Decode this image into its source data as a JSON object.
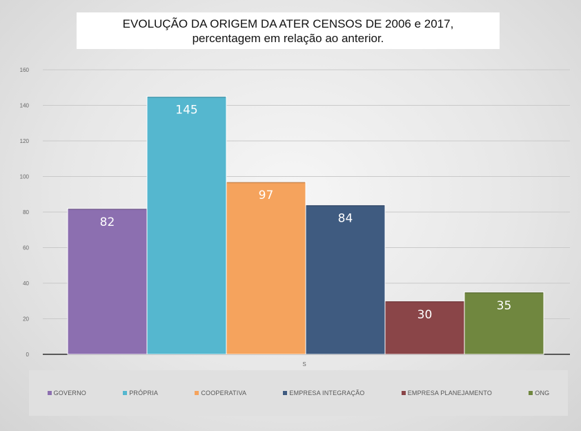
{
  "chart_data": {
    "type": "bar",
    "title_line1": "EVOLUÇÃO DA ORIGEM DA ATER CENSOS DE 2006 e 2017,",
    "title_line2": "percentagem em relação ao anterior.",
    "categories": [
      "S"
    ],
    "xlabel": "S",
    "ylabel": "",
    "ylim": [
      0,
      160
    ],
    "yticks": [
      0,
      20,
      40,
      60,
      80,
      100,
      120,
      140,
      160
    ],
    "grid": true,
    "legend_position": "bottom",
    "series": [
      {
        "name": "GOVERNO",
        "values": [
          82
        ],
        "color": "#8c6fb0"
      },
      {
        "name": "PRÓPRIA",
        "values": [
          145
        ],
        "color": "#55b7cf"
      },
      {
        "name": "COOPERATIVA",
        "values": [
          97
        ],
        "color": "#f5a35d"
      },
      {
        "name": "EMPRESA INTEGRAÇÃO",
        "values": [
          84
        ],
        "color": "#3f5b80"
      },
      {
        "name": "EMPRESA PLANEJAMENTO",
        "values": [
          30
        ],
        "color": "#8a4548"
      },
      {
        "name": "ONG",
        "values": [
          35
        ],
        "color": "#70873f"
      }
    ]
  }
}
